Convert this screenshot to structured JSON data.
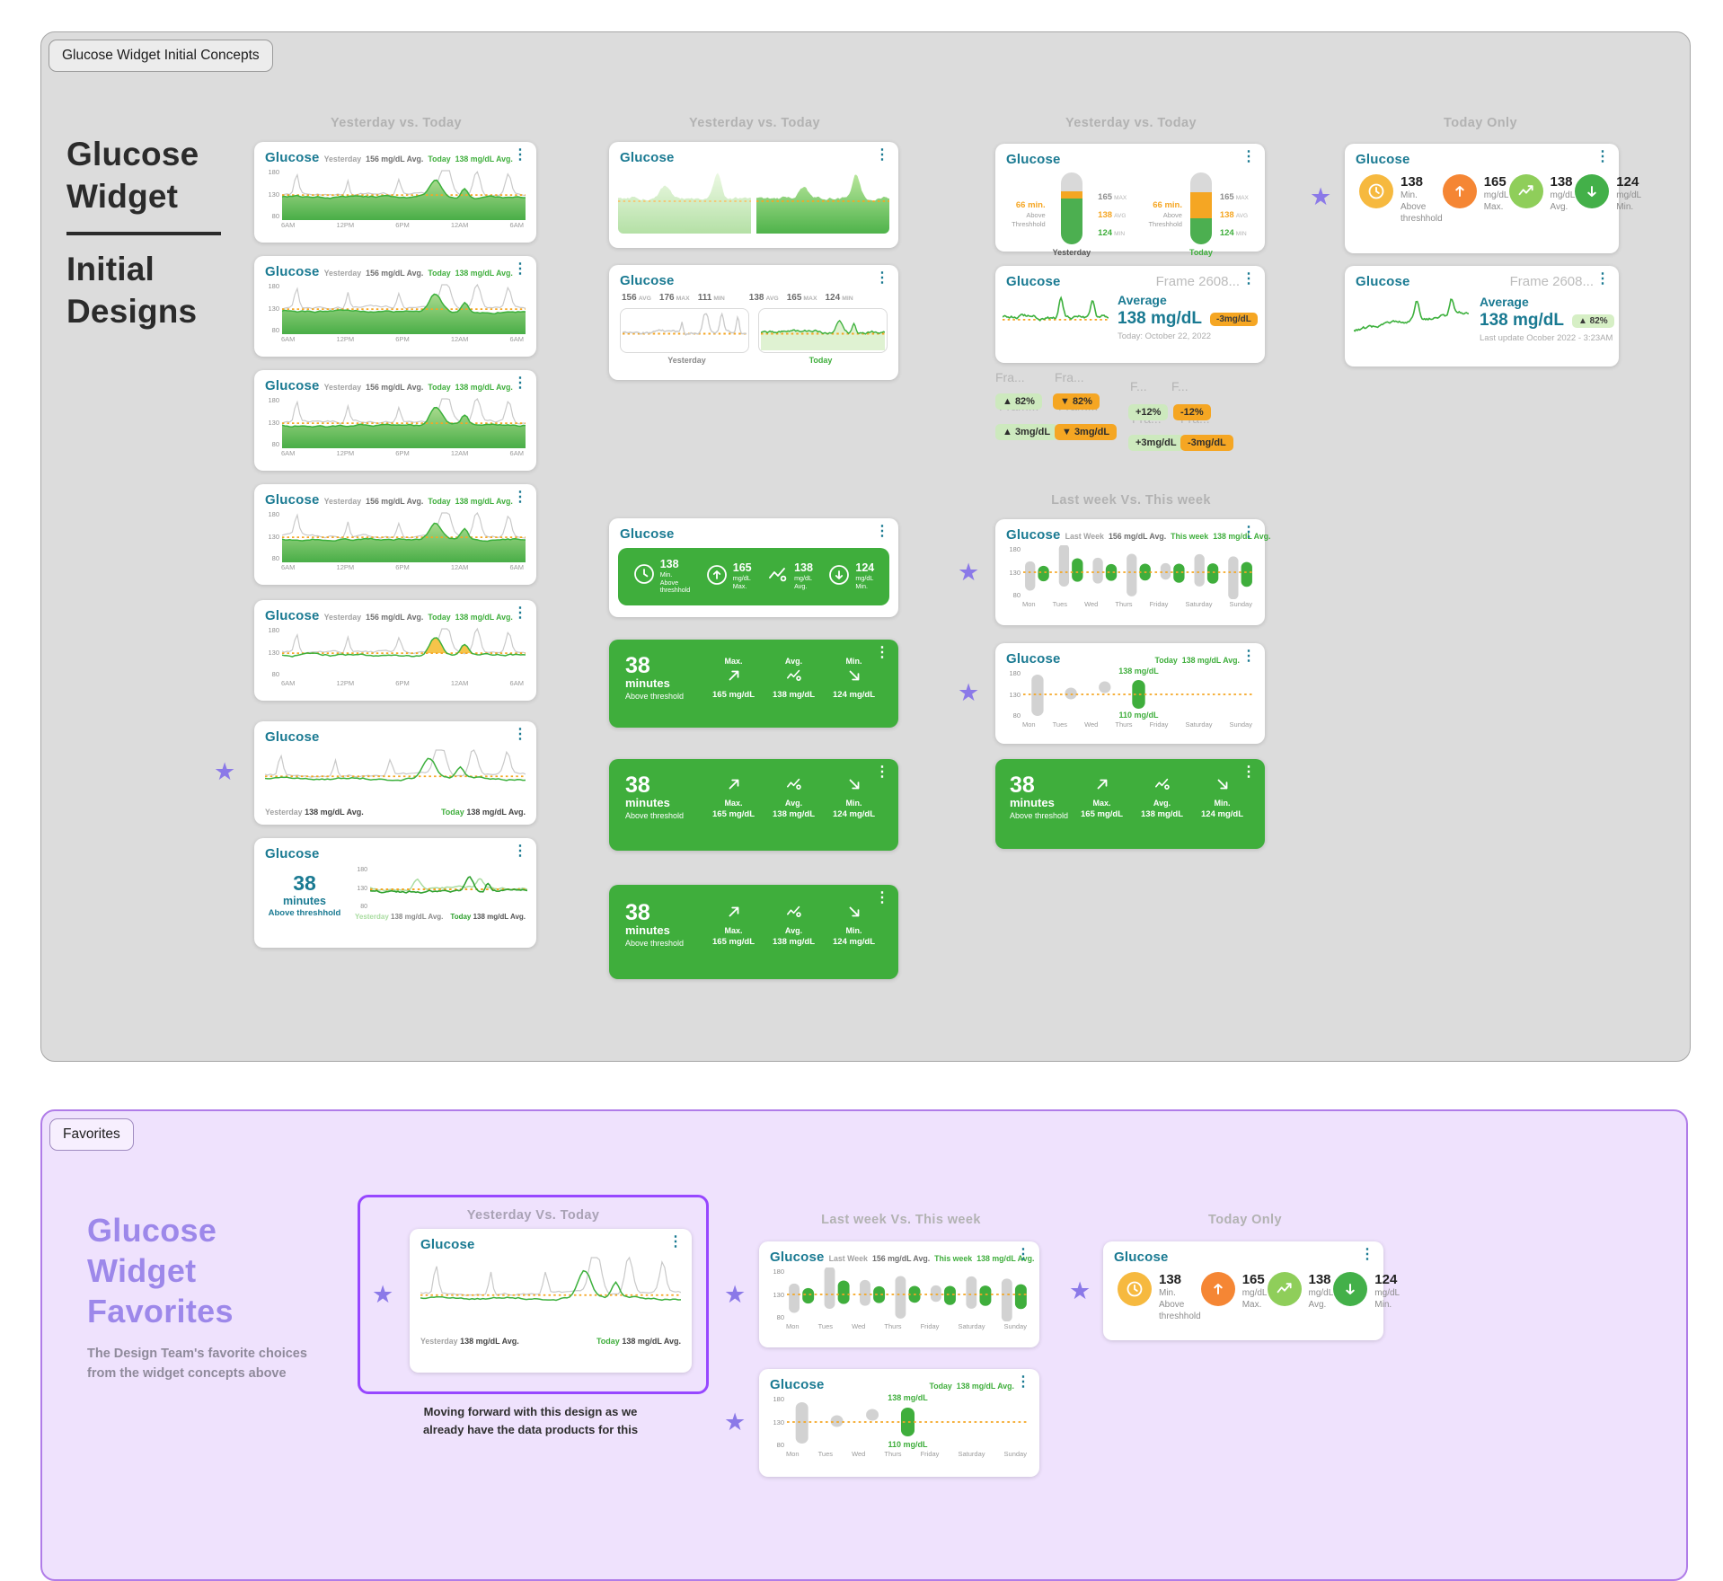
{
  "initial": {
    "tab": "Glucose Widget Initial Concepts",
    "h1": "Glucose",
    "h2": "Widget",
    "h3": "Initial",
    "h4": "Designs",
    "col_headers": [
      "Yesterday vs. Today",
      "Yesterday vs. Today",
      "Yesterday vs. Today",
      "Today Only"
    ],
    "lastweek_header": "Last week Vs. This week"
  },
  "favorites": {
    "tab": "Favorites",
    "h1": "Glucose",
    "h2": "Widget",
    "h3": "Favorites",
    "sub1": "The Design Team's favorite choices",
    "sub2": "from the widget concepts above",
    "note1": "Moving forward with this design as we",
    "note2": "already have the data products for this",
    "col_headers": [
      "Yesterday Vs. Today",
      "Last week Vs. This week",
      "Today Only"
    ]
  },
  "w": {
    "title": "Glucose",
    "yesterday": "Yesterday",
    "today": "Today",
    "last_week": "Last Week",
    "this_week": "This week",
    "avg156": "156 mg/dL Avg.",
    "avg138": "138 mg/dL Avg.",
    "y": [
      "180",
      "130",
      "80"
    ],
    "xd": [
      "6AM",
      "12PM",
      "6PM",
      "12AM",
      "6AM"
    ],
    "xw": [
      "Mon",
      "Tues",
      "Wed",
      "Thurs",
      "Friday",
      "Saturday",
      "Sunday"
    ],
    "min38": "38",
    "minutes": "minutes",
    "above_hh": "Above threshhold",
    "above_h": "Above threshold",
    "s_min_above": {
      "v": "138",
      "l1": "Min.",
      "l2": "Above",
      "l3": "threshhold"
    },
    "s_max": {
      "v": "165",
      "u": "mg/dL",
      "l": "Max."
    },
    "s_avg": {
      "v": "138",
      "u": "mg/dL",
      "l": "Avg."
    },
    "s_min": {
      "v": "124",
      "u": "mg/dL",
      "l": "Min."
    },
    "bars": {
      "above": "66 min.",
      "a1": "Above",
      "a2": "Threshhold",
      "max": "165",
      "maxt": "MAX",
      "avg": "138",
      "avgt": "AVG",
      "min": "124",
      "mint": "MIN"
    },
    "duo": {
      "ya": "156",
      "yx": "176",
      "yn": "111",
      "ta": "138",
      "tx": "165",
      "tn": "124",
      "at": "AVG",
      "xt": "MAX",
      "nt": "MIN"
    },
    "frame": "Frame 2608...",
    "average": "Average",
    "avgval": "138 mg/dL",
    "date": "Today: October 22, 2022",
    "lastupd": "Last update Ocober 2022 - 3:23AM",
    "hi": "138 mg/dL",
    "lo": "110 mg/dL"
  },
  "chips": {
    "fra": "Fra...",
    "fram": "Fram...",
    "f": "F...",
    "up82": "▲ 82%",
    "down82": "▼ 82%",
    "up3": "▲ 3mg/dL",
    "down3": "▼ 3mg/dL",
    "p12": "+12%",
    "m12": "-12%",
    "p3": "+3mg/dL",
    "m3": "-3mg/dL"
  },
  "icons": {
    "kebab": "⋮",
    "star": "★"
  },
  "colors": {
    "teal": "#1A7A92",
    "green": "#3FAE3C",
    "light_green": "#8FCE5A",
    "threshold_orange": "#F5A623",
    "amber": "#F6B93F",
    "orange": "#F58634",
    "gray_line": "#C9C9C9",
    "purple_star": "#8B79E8",
    "figma_purple": "#9747FF",
    "favorites_bg": "#EFE2FD"
  },
  "chart_data": [
    {
      "type": "area",
      "name": "daily-glucose-curve",
      "x_ticks": [
        "6AM",
        "12PM",
        "6PM",
        "12AM",
        "6AM"
      ],
      "y_ticks": [
        80,
        130,
        180
      ],
      "threshold": 130,
      "series": [
        {
          "name": "Yesterday",
          "avg": 156
        },
        {
          "name": "Today",
          "avg": 138
        }
      ]
    },
    {
      "type": "bar",
      "name": "yesterday-today-range-bars",
      "categories": [
        "Yesterday",
        "Today"
      ],
      "max": 165,
      "avg": 138,
      "min": 124,
      "minutes_above_threshold": 66
    },
    {
      "type": "scatter",
      "name": "week-comparison-pills",
      "categories": [
        "Mon",
        "Tues",
        "Wed",
        "Thurs",
        "Friday",
        "Saturday",
        "Sunday"
      ],
      "y_ticks": [
        80,
        130,
        180
      ],
      "threshold": 130,
      "series": [
        {
          "name": "Last Week",
          "avg": 156
        },
        {
          "name": "This week",
          "avg": 138
        }
      ]
    },
    {
      "type": "scatter",
      "name": "today-week-pills",
      "categories": [
        "Mon",
        "Tues",
        "Wed",
        "Thurs"
      ],
      "threshold": 130,
      "today_avg": 138,
      "high": 138,
      "low": 110
    },
    {
      "type": "line",
      "name": "today-average-trend",
      "average": 138,
      "change_pct": 82,
      "change_mg": -3
    }
  ]
}
